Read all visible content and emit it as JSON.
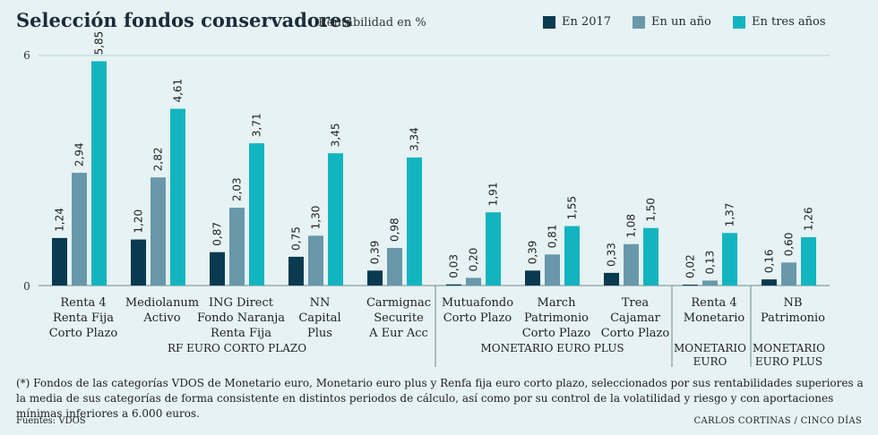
{
  "header": {
    "title": "Selección fondos conservadores",
    "subtitle": "Rentabilidad en %"
  },
  "colors": {
    "en_2017": "#0a3a4f",
    "en_un_ano": "#6898aa",
    "en_tres_anos": "#12b5bf",
    "grid": "#b9d7dc",
    "axis": "#6f8a92"
  },
  "chart_data": {
    "type": "bar",
    "title": "Selección fondos conservadores",
    "subtitle": "Rentabilidad en %",
    "ylim": [
      0,
      6
    ],
    "yticks": [
      "0",
      "6"
    ],
    "legend": "top-right",
    "categories": [
      "Renta 4\nRenta Fija\nCorto Plazo",
      "Mediolanum\nActivo",
      "ING Direct\nFondo Naranja\nRenta Fija",
      "NN\nCapital\nPlus",
      "Carmignac\nSecurite\nA Eur Acc",
      "Mutuafondo\nCorto Plazo",
      "March\nPatrimonio\nCorto Plazo",
      "Trea\nCajamar\nCorto Plazo",
      "Renta 4\nMonetario",
      "NB\nPatrimonio"
    ],
    "series": [
      {
        "name": "En 2017",
        "values": [
          1.24,
          1.2,
          0.87,
          0.75,
          0.39,
          0.03,
          0.39,
          0.33,
          0.02,
          0.16
        ],
        "labels": [
          "1,24",
          "1,20",
          "0,87",
          "0,75",
          "0,39",
          "0,03",
          "0,39",
          "0,33",
          "0,02",
          "0,16"
        ]
      },
      {
        "name": "En un año",
        "values": [
          2.94,
          2.82,
          2.03,
          1.3,
          0.98,
          0.2,
          0.81,
          1.08,
          0.13,
          0.6
        ],
        "labels": [
          "2,94",
          "2,82",
          "2,03",
          "1,30",
          "0,98",
          "0,20",
          "0,81",
          "1,08",
          "0,13",
          "0,60"
        ]
      },
      {
        "name": "En tres años",
        "values": [
          5.85,
          4.61,
          3.71,
          3.45,
          3.34,
          1.91,
          1.55,
          1.5,
          1.37,
          1.26
        ],
        "labels": [
          "5,85",
          "4,61",
          "3,71",
          "3,45",
          "3,34",
          "1,91",
          "1,55",
          "1,50",
          "1,37",
          "1,26"
        ]
      }
    ],
    "groups": [
      {
        "label": "RF EURO CORTO PLAZO",
        "first": 0,
        "last": 4
      },
      {
        "label": "MONETARIO EURO PLUS",
        "first": 5,
        "last": 7
      },
      {
        "label": "MONETARIO\nEURO",
        "first": 8,
        "last": 8
      },
      {
        "label": "MONETARIO\nEURO PLUS",
        "first": 9,
        "last": 9
      }
    ]
  },
  "footnote": "(*) Fondos de las categorías VDOS de Monetario euro, Monetario euro plus y Renfa fija euro corto plazo, seleccionados por sus rentabilidades superiores a la media de sus categorías de forma consistente en distintos periodos de cálculo, así como por su control de la volatilidad y riesgo y con aportaciones mínimas inferiores a 6.000 euros.",
  "sources": "Fuentes: VDOS",
  "credit": "CARLOS CORTINAS / CINCO DÍAS"
}
